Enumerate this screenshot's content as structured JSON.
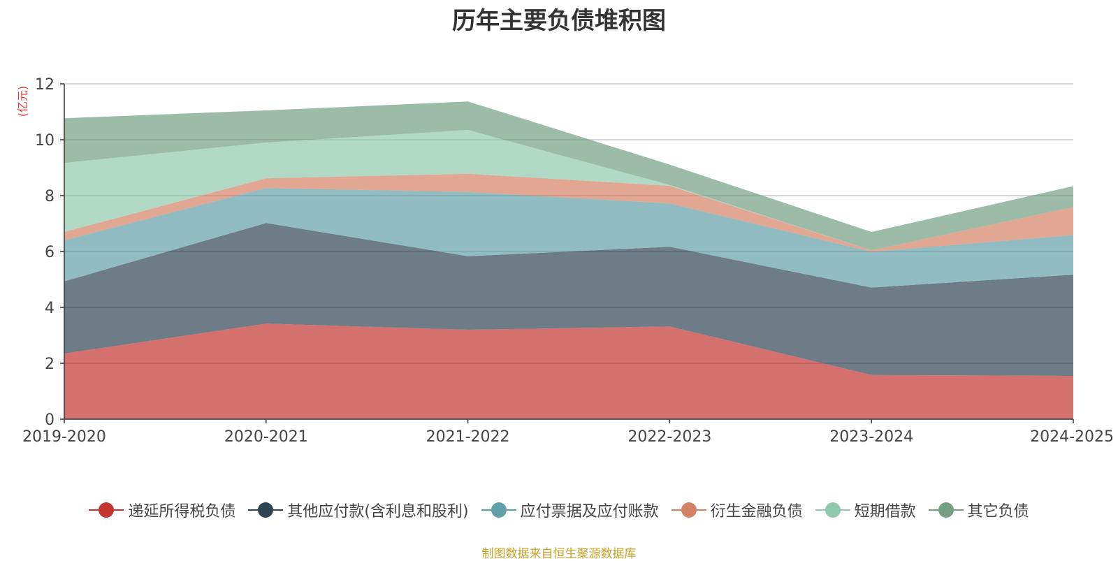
{
  "title": "历年主要负债堆积图",
  "source_note": "制图数据来自恒生聚源数据库",
  "chart_data": {
    "type": "area",
    "stacked": true,
    "title": "历年主要负债堆积图",
    "ylabel": "(亿元)",
    "xlabel": "",
    "x": [
      "2019-2020",
      "2020-2021",
      "2021-2022",
      "2022-2023",
      "2023-2024",
      "2024-2025"
    ],
    "ylim": [
      0,
      12
    ],
    "yticks": [
      0,
      2,
      4,
      6,
      8,
      10,
      12
    ],
    "grid": true,
    "legend_position": "bottom",
    "series": [
      {
        "name": "递延所得税负债",
        "color": "#c23531",
        "values": [
          2.35,
          3.42,
          3.2,
          3.32,
          1.58,
          1.55
        ]
      },
      {
        "name": "其他应付款(含利息和股利)",
        "color": "#2f4554",
        "values": [
          2.58,
          3.6,
          2.63,
          2.85,
          3.13,
          3.62
        ]
      },
      {
        "name": "应付票据及应付账款",
        "color": "#61a0a8",
        "values": [
          1.47,
          1.25,
          2.3,
          1.55,
          1.28,
          1.42
        ]
      },
      {
        "name": "衍生金融负债",
        "color": "#d48265",
        "values": [
          0.3,
          0.35,
          0.65,
          0.63,
          0.05,
          1.0
        ]
      },
      {
        "name": "短期借款",
        "color": "#91c7ae",
        "values": [
          2.47,
          1.28,
          1.57,
          0.03,
          0.0,
          0.0
        ]
      },
      {
        "name": "其它负债",
        "color": "#749f83",
        "values": [
          1.6,
          1.15,
          1.02,
          0.73,
          0.66,
          0.75
        ]
      }
    ]
  }
}
